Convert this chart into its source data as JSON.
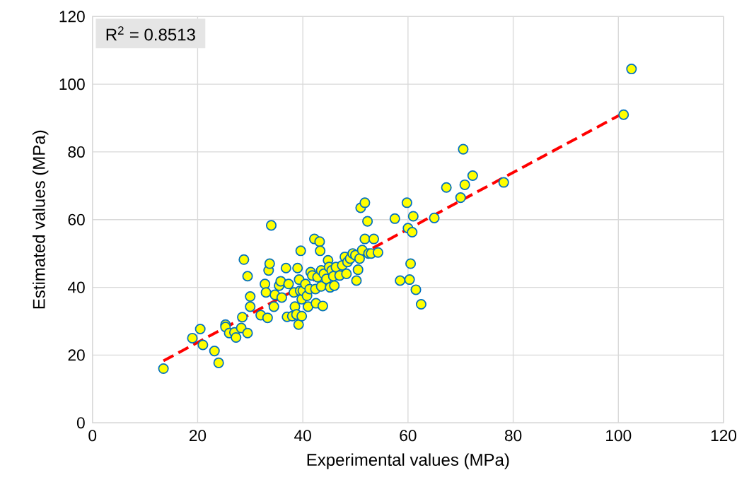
{
  "chart_data": {
    "type": "scatter",
    "xlabel": "Experimental values (MPa)",
    "ylabel": "Estimated values (MPa)",
    "xlim": [
      0,
      120
    ],
    "ylim": [
      0,
      120
    ],
    "xticks": [
      0,
      20,
      40,
      60,
      80,
      100,
      120
    ],
    "yticks": [
      0,
      20,
      40,
      60,
      80,
      100,
      120
    ],
    "grid": true,
    "marker": "circle",
    "annotations": [
      "R$^{2}$ = 0.8513"
    ],
    "series": [
      {
        "color": "#ffff00",
        "x": [
          13.5,
          19,
          20.5,
          21,
          23.2,
          24,
          25.3,
          25.3,
          26,
          27,
          27.3,
          28.3,
          28.5,
          28.8,
          29.5,
          29.5,
          30,
          30,
          32,
          32.8,
          33,
          33.3,
          33.5,
          33.7,
          34,
          34.5,
          34.7,
          35.5,
          35.8,
          36,
          36.8,
          37,
          37.3,
          38,
          38.3,
          38.5,
          38.8,
          39,
          39.2,
          39.3,
          39.5,
          39.8,
          39.6,
          39.8,
          40,
          40.5,
          40.8,
          41,
          41.3,
          41.5,
          41.8,
          42.2,
          42.4,
          42.5,
          42.8,
          43.2,
          43.3,
          43.5,
          43.5,
          43.8,
          44,
          44.5,
          44.8,
          45,
          45.2,
          45.5,
          45.8,
          46,
          46.3,
          47,
          47.5,
          48,
          48.3,
          48.5,
          49,
          49.5,
          50,
          50.2,
          50.5,
          50.8,
          51,
          51.3,
          51.8,
          51.8,
          52.3,
          52.5,
          53,
          53.5,
          54.3,
          57.5,
          58.5,
          59.8,
          60,
          60.3,
          60.5,
          60.8,
          61,
          61.5,
          62.5,
          65,
          67.3,
          70,
          70.5,
          70.8,
          72.3,
          78.2,
          101,
          102.5
        ],
        "values": [
          16,
          25,
          27.7,
          23,
          21.2,
          17.7,
          29,
          28.3,
          26.5,
          26.7,
          25.2,
          28,
          31.2,
          48.2,
          43.3,
          26.5,
          37.3,
          34.3,
          31.8,
          41,
          38.5,
          31,
          45,
          47,
          58.3,
          34.3,
          37.8,
          40.5,
          41.8,
          37,
          45.7,
          31.3,
          41,
          31.5,
          38.5,
          34.3,
          32,
          45.7,
          29,
          42.3,
          39,
          36.5,
          50.8,
          31.5,
          39,
          41,
          37.5,
          34.3,
          39.5,
          44.5,
          43.5,
          54.3,
          39.5,
          35.3,
          43,
          53.5,
          50.8,
          40.3,
          45,
          34.5,
          44,
          42.5,
          48,
          46,
          40,
          45,
          43.3,
          40.5,
          46,
          43.5,
          46.5,
          49,
          44,
          47.5,
          48.5,
          50,
          49.5,
          42,
          45.2,
          48.5,
          63.5,
          51,
          65,
          54.3,
          59.5,
          50,
          50,
          54.3,
          50.3,
          60.3,
          42,
          65,
          57.5,
          42.3,
          47,
          56.3,
          61,
          39.3,
          35,
          60.5,
          69.5,
          66.5,
          80.8,
          70.3,
          73,
          71,
          91,
          104.5
        ]
      },
      {
        "type": "line",
        "color": "#ff0000",
        "line_style": "dashed",
        "marker": "none",
        "x": [
          13.5,
          101
        ],
        "values": [
          18.3,
          91.5
        ]
      }
    ]
  }
}
